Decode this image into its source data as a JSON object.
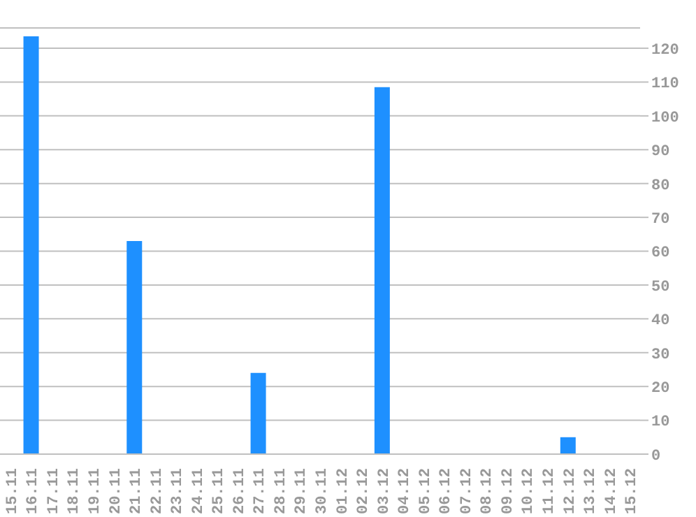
{
  "chart_data": {
    "type": "bar",
    "categories": [
      "15.11",
      "16.11",
      "17.11",
      "18.11",
      "19.11",
      "20.11",
      "21.11",
      "22.11",
      "23.11",
      "24.11",
      "25.11",
      "26.11",
      "27.11",
      "28.11",
      "29.11",
      "30.11",
      "01.12",
      "02.12",
      "03.12",
      "04.12",
      "05.12",
      "06.12",
      "07.12",
      "08.12",
      "09.12",
      "10.12",
      "11.12",
      "12.12",
      "13.12",
      "14.12",
      "15.12"
    ],
    "values": [
      0,
      123.5,
      0,
      0,
      0,
      0,
      63,
      0,
      0,
      0,
      0,
      0,
      24,
      0,
      0,
      0,
      0,
      0,
      108.5,
      0,
      0,
      0,
      0,
      0,
      0,
      0,
      0,
      5,
      0,
      0,
      0
    ],
    "color": "#1e90ff",
    "ylim": [
      0,
      126
    ],
    "yticks": [
      0,
      10,
      20,
      30,
      40,
      50,
      60,
      70,
      80,
      90,
      100,
      110,
      120
    ],
    "grid": "y"
  }
}
